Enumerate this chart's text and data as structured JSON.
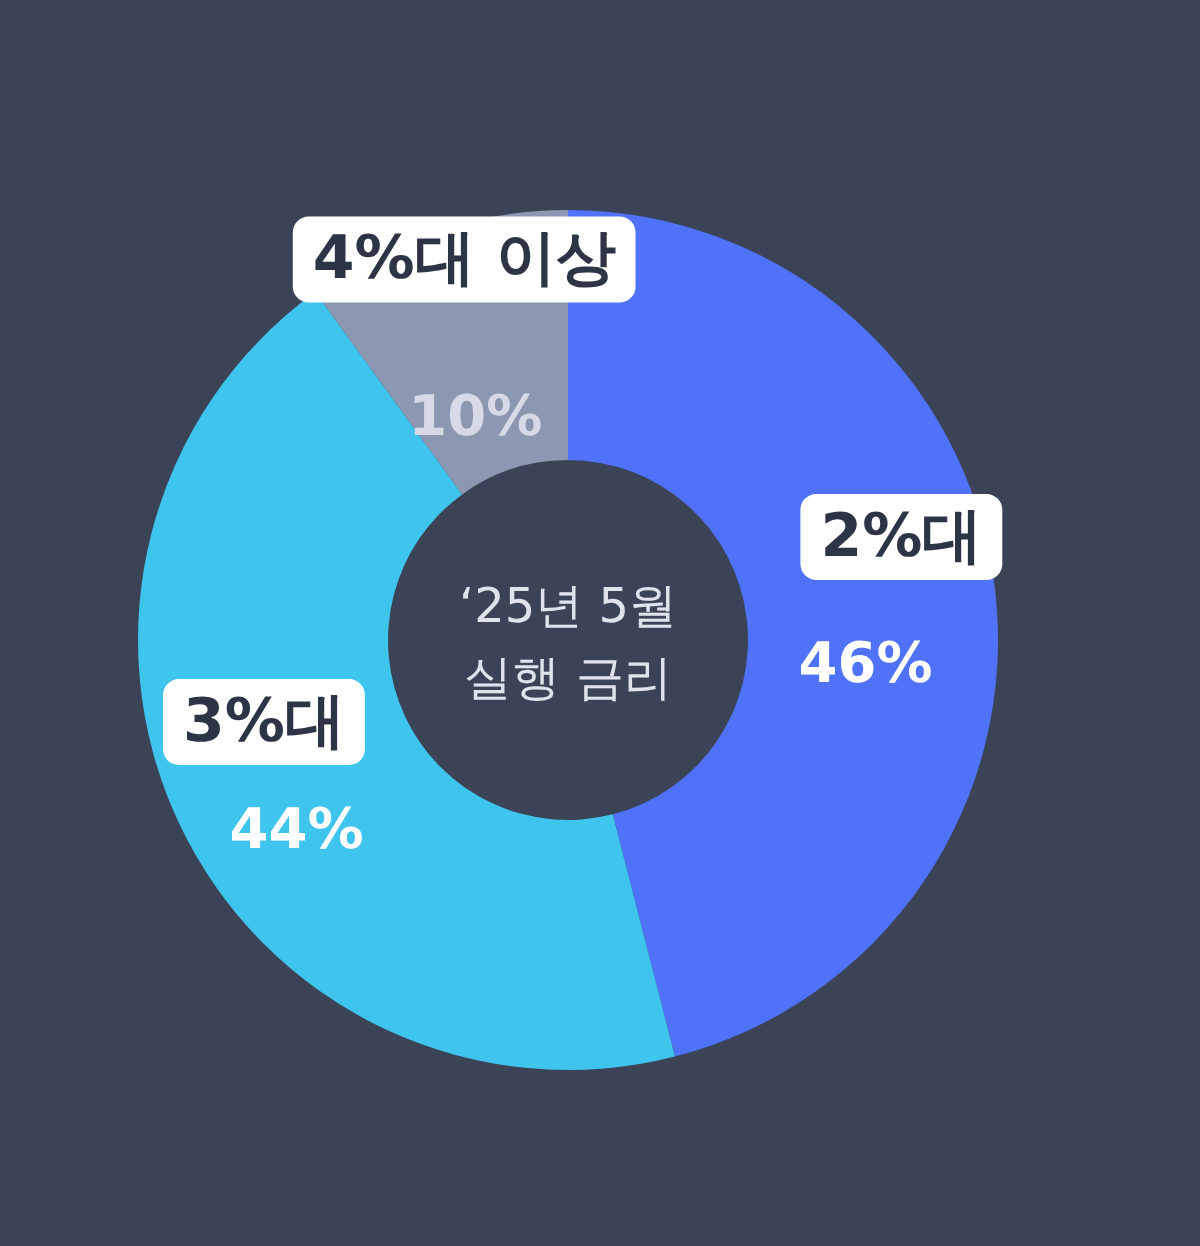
{
  "chart_data": {
    "type": "donut",
    "title": "‘25년 5월\n실행 금리",
    "categories": [
      "2%대",
      "3%대",
      "4%대 이상"
    ],
    "values": [
      46,
      44,
      10
    ],
    "value_labels": [
      "46%",
      "44%",
      "10%"
    ],
    "colors": [
      "#4f72f8",
      "#3fc4ee",
      "#8c97b2"
    ],
    "legend": false
  }
}
